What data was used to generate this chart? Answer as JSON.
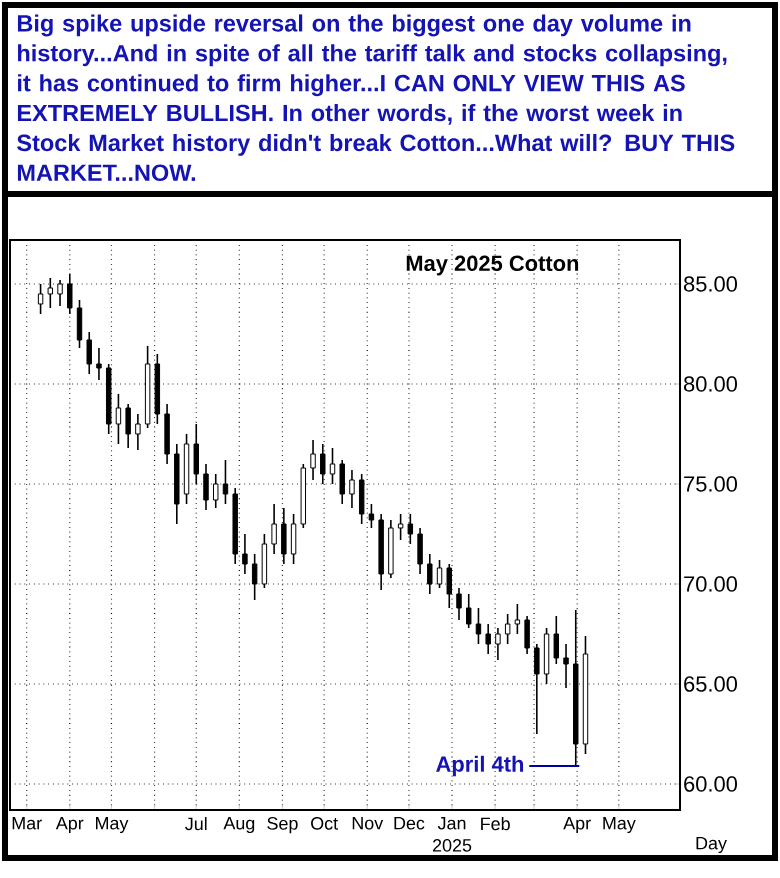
{
  "chart_data": {
    "type": "candlestick",
    "title": "May 2025 Cotton",
    "xlabel": "Day",
    "annotations": [
      "Big spike upside reversal on the biggest one day volume in history...And in spite of all the tariff talk and stocks collapsing, it has continued to firm higher...I CAN ONLY VIEW THIS AS EXTREMELY BULLISH. In other words,",
      "if the worst week in Stock Market history didn't break Cotton...What will? BUY THIS MARKET...NOW.",
      "2025",
      {
        "text": "April 4th",
        "x": "2025-04-04",
        "y": 60.9
      }
    ],
    "x": [
      "2024-03-11",
      "2024-03-18",
      "2024-03-25",
      "2024-04-01",
      "2024-04-08",
      "2024-04-15",
      "2024-04-22",
      "2024-04-29",
      "2024-05-06",
      "2024-05-13",
      "2024-05-20",
      "2024-05-27",
      "2024-06-03",
      "2024-06-10",
      "2024-06-17",
      "2024-06-24",
      "2024-07-01",
      "2024-07-08",
      "2024-07-15",
      "2024-07-22",
      "2024-07-29",
      "2024-08-05",
      "2024-08-12",
      "2024-08-19",
      "2024-08-26",
      "2024-09-02",
      "2024-09-09",
      "2024-09-16",
      "2024-09-23",
      "2024-09-30",
      "2024-10-07",
      "2024-10-14",
      "2024-10-21",
      "2024-10-28",
      "2024-11-04",
      "2024-11-11",
      "2024-11-18",
      "2024-11-25",
      "2024-12-02",
      "2024-12-09",
      "2024-12-16",
      "2024-12-23",
      "2024-12-30",
      "2025-01-06",
      "2025-01-13",
      "2025-01-20",
      "2025-01-27",
      "2025-02-03",
      "2025-02-10",
      "2025-02-17",
      "2025-02-24",
      "2025-03-03",
      "2025-03-10",
      "2025-03-17",
      "2025-03-24",
      "2025-03-31",
      "2025-04-07"
    ],
    "ohlc": [
      [
        84,
        85,
        83.5,
        84.5
      ],
      [
        84.5,
        85.3,
        83.8,
        84.8
      ],
      [
        84.5,
        85.2,
        83.9,
        85
      ],
      [
        85,
        85.5,
        83.5,
        83.8
      ],
      [
        83.8,
        84.2,
        81.8,
        82.2
      ],
      [
        82.2,
        82.6,
        80.5,
        81
      ],
      [
        81,
        81.8,
        80.2,
        80.8
      ],
      [
        80.8,
        81,
        77.5,
        78
      ],
      [
        78,
        79.5,
        77,
        78.8
      ],
      [
        78.8,
        79,
        76.8,
        77.5
      ],
      [
        77.5,
        78.5,
        76.7,
        78
      ],
      [
        78,
        81.9,
        77.8,
        81
      ],
      [
        81,
        81.5,
        78,
        78.5
      ],
      [
        78.5,
        79,
        76,
        76.5
      ],
      [
        76.5,
        77,
        73,
        74
      ],
      [
        74.5,
        77.5,
        74,
        77
      ],
      [
        77,
        78,
        75,
        75.5
      ],
      [
        75.5,
        76,
        73.7,
        74.2
      ],
      [
        74.2,
        75.5,
        73.8,
        75
      ],
      [
        75,
        76.2,
        74,
        74.5
      ],
      [
        74.5,
        74.8,
        71,
        71.5
      ],
      [
        71.5,
        72.5,
        70.5,
        71
      ],
      [
        71,
        71.5,
        69.2,
        70
      ],
      [
        70,
        72.5,
        69.8,
        72
      ],
      [
        72,
        74,
        71.5,
        73
      ],
      [
        73,
        73.8,
        71,
        71.5
      ],
      [
        71.5,
        73.5,
        71,
        73
      ],
      [
        73,
        76,
        72.8,
        75.8
      ],
      [
        75.8,
        77.2,
        75.2,
        76.5
      ],
      [
        76.5,
        77,
        75,
        75.5
      ],
      [
        75.5,
        76.8,
        75,
        76
      ],
      [
        76,
        76.2,
        74,
        74.5
      ],
      [
        74.5,
        75.7,
        73.8,
        75.2
      ],
      [
        75.2,
        75.5,
        73,
        73.5
      ],
      [
        73.5,
        74,
        72.8,
        73.2
      ],
      [
        73.2,
        73.5,
        69.7,
        70.5
      ],
      [
        70.5,
        73.2,
        70.3,
        72.8
      ],
      [
        72.8,
        73.5,
        72.2,
        73
      ],
      [
        73,
        73.5,
        72,
        72.5
      ],
      [
        72.5,
        72.8,
        70.5,
        71
      ],
      [
        71,
        71.5,
        69.5,
        70
      ],
      [
        70,
        71.2,
        69.8,
        70.8
      ],
      [
        70.8,
        71,
        68.8,
        69.5
      ],
      [
        69.5,
        69.8,
        68.2,
        68.8
      ],
      [
        68.8,
        69.5,
        67.8,
        68
      ],
      [
        68,
        68.8,
        67,
        67.5
      ],
      [
        67.5,
        68,
        66.5,
        67
      ],
      [
        67,
        67.8,
        66.2,
        67.5
      ],
      [
        67.5,
        68.5,
        67,
        68
      ],
      [
        68,
        69,
        67.5,
        68.2
      ],
      [
        68.2,
        68.4,
        66.5,
        66.8
      ],
      [
        66.8,
        67,
        62.5,
        65.5
      ],
      [
        65.5,
        67.8,
        65,
        67.5
      ],
      [
        67.5,
        68.4,
        66,
        66.3
      ],
      [
        66.3,
        67,
        64.8,
        66
      ],
      [
        66,
        68.7,
        60.9,
        62
      ],
      [
        62,
        67.4,
        61.5,
        66.5
      ]
    ],
    "xlim": [
      "2024-02-18",
      "2025-06-14"
    ],
    "ylim": [
      58.7,
      87.2
    ],
    "xticks": [
      {
        "value": "2024-03-01",
        "label": "Mar"
      },
      {
        "value": "2024-04-01",
        "label": "Apr"
      },
      {
        "value": "2024-05-01",
        "label": "May"
      },
      {
        "value": "2024-06-01",
        "label": null
      },
      {
        "value": "2024-07-01",
        "label": "Jul"
      },
      {
        "value": "2024-08-01",
        "label": "Aug"
      },
      {
        "value": "2024-09-01",
        "label": "Sep"
      },
      {
        "value": "2024-10-01",
        "label": "Oct"
      },
      {
        "value": "2024-11-01",
        "label": "Nov"
      },
      {
        "value": "2024-12-01",
        "label": "Dec"
      },
      {
        "value": "2025-01-01",
        "label": "Jan"
      },
      {
        "value": "2025-02-01",
        "label": "Feb"
      },
      {
        "value": "2025-03-01",
        "label": null
      },
      {
        "value": "2025-04-01",
        "label": "Apr"
      },
      {
        "value": "2025-05-01",
        "label": "May"
      }
    ],
    "yticks": [
      {
        "value": 60,
        "label": "60.00"
      },
      {
        "value": 65,
        "label": "65.00"
      },
      {
        "value": 70,
        "label": "70.00"
      },
      {
        "value": 75,
        "label": "75.00"
      },
      {
        "value": 80,
        "label": "80.00"
      },
      {
        "value": 85,
        "label": "85.00"
      }
    ],
    "grid": true
  }
}
